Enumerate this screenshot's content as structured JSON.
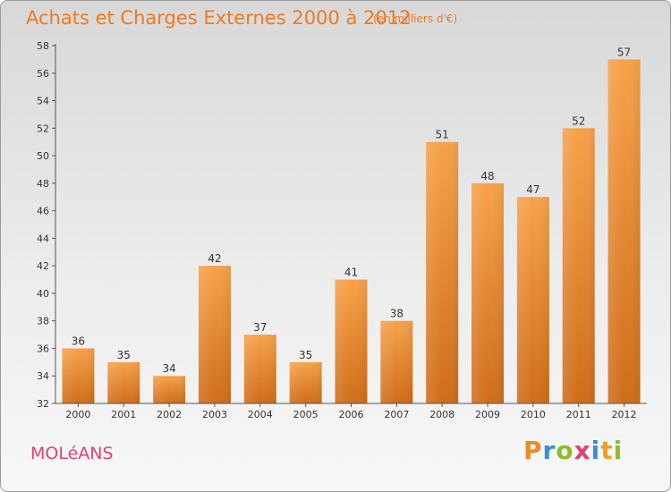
{
  "chart_data": {
    "type": "bar",
    "title": "Achats et Charges Externes 2000 à 2012",
    "subtitle": "(en milliers d'€)",
    "categories": [
      "2000",
      "2001",
      "2002",
      "2003",
      "2004",
      "2005",
      "2006",
      "2007",
      "2008",
      "2009",
      "2010",
      "2011",
      "2012"
    ],
    "values": [
      36,
      35,
      34,
      42,
      37,
      35,
      41,
      38,
      51,
      48,
      47,
      52,
      57
    ],
    "ylim": [
      32,
      58
    ],
    "ytick_step": 2,
    "xlabel": "",
    "ylabel": "",
    "grid": false,
    "bar_color": "#f08c2a"
  },
  "city_name": "MOLéANS",
  "logo": {
    "letters": [
      "P",
      "r",
      "o",
      "x",
      "i",
      "t",
      "i"
    ],
    "colors": [
      "#f08a22",
      "#3a8fd4",
      "#8dbd2a",
      "#e04173",
      "#3a8fd4",
      "#f0a020",
      "#8dbd2a"
    ]
  }
}
